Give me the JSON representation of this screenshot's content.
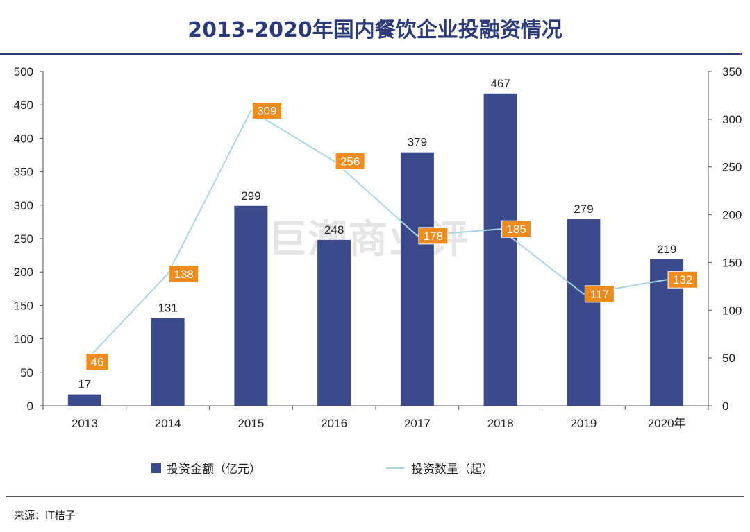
{
  "title": "2013-2020年国内餐饮企业投融资情况",
  "watermark": "巨潮商业评",
  "source": "来源：IT桔子",
  "colors": {
    "bar": "#3b4a8a",
    "line": "#a8d8e8",
    "label_box": "#f08c1e",
    "title": "#2b3a7a"
  },
  "chart_data": {
    "type": "bar",
    "categories": [
      "2013",
      "2014",
      "2015",
      "2016",
      "2017",
      "2018",
      "2019",
      "2020年"
    ],
    "series": [
      {
        "name": "投资金额（亿元）",
        "type": "bar",
        "axis": "left",
        "values": [
          17,
          131,
          299,
          248,
          379,
          467,
          279,
          219
        ]
      },
      {
        "name": "投资数量（起）",
        "type": "line",
        "axis": "right",
        "values": [
          46,
          138,
          309,
          256,
          178,
          185,
          117,
          132
        ]
      }
    ],
    "y_left": {
      "min": 0,
      "max": 500,
      "step": 50,
      "ticks": [
        "0",
        "50",
        "100",
        "150",
        "200",
        "250",
        "300",
        "350",
        "400",
        "450",
        "500"
      ]
    },
    "y_right": {
      "min": 0,
      "max": 350,
      "step": 50,
      "ticks": [
        "0",
        "50",
        "100",
        "150",
        "200",
        "250",
        "300",
        "350"
      ]
    },
    "legend": [
      "投资金额（亿元）",
      "投资数量（起）"
    ],
    "legend_position": "bottom",
    "grid": false
  }
}
